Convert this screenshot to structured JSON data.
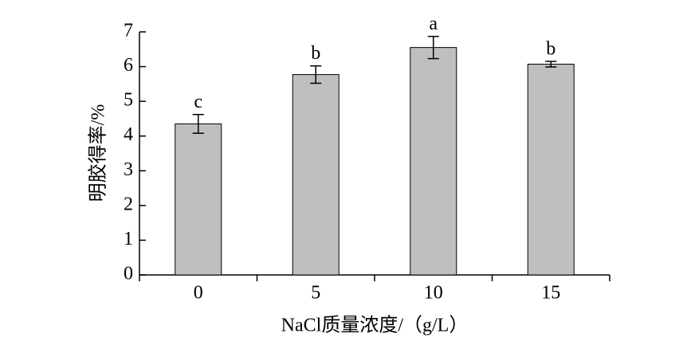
{
  "chart_data": {
    "type": "bar",
    "xlabel": "NaCl质量浓度/（g/L）",
    "ylabel": "明胶得率/%",
    "categories": [
      "0",
      "5",
      "10",
      "15"
    ],
    "values": [
      4.35,
      5.77,
      6.55,
      6.07
    ],
    "errors": [
      0.27,
      0.25,
      0.32,
      0.08
    ],
    "annotations": [
      "c",
      "b",
      "a",
      "b"
    ],
    "color": "#bfbfbf",
    "ylim": [
      0,
      7
    ],
    "yticks": [
      0,
      1,
      2,
      3,
      4,
      5,
      6,
      7
    ],
    "grid": false
  }
}
